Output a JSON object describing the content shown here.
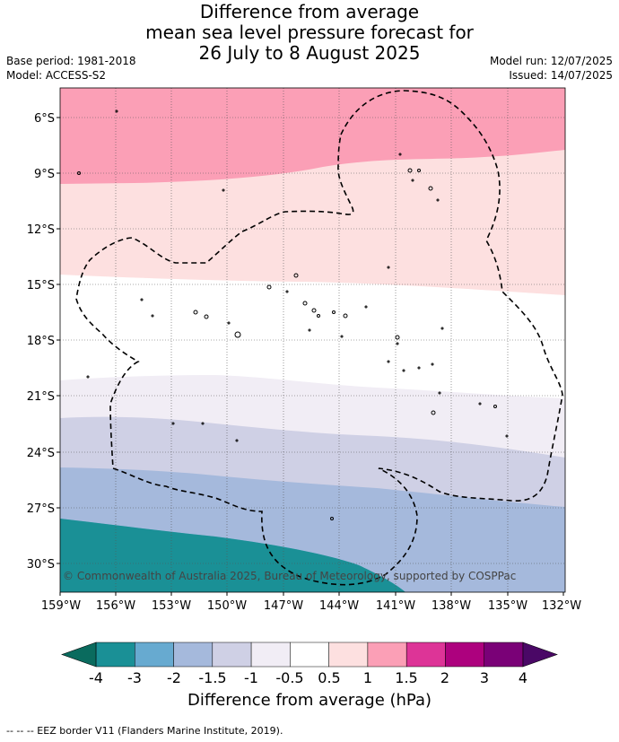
{
  "title": {
    "line1": "Difference from average",
    "line2": "mean sea level pressure forecast for",
    "line3": "26 July to 8 August 2025"
  },
  "meta_left": {
    "base_period": "Base period: 1981-2018",
    "model": "Model: ACCESS-S2"
  },
  "meta_right": {
    "model_run": "Model run: 12/07/2025",
    "issued": "Issued: 14/07/2025"
  },
  "map": {
    "lat_ticks": [
      "6°S",
      "9°S",
      "12°S",
      "15°S",
      "18°S",
      "21°S",
      "24°S",
      "27°S",
      "30°S"
    ],
    "lon_ticks": [
      "159°W",
      "156°W",
      "153°W",
      "150°W",
      "147°W",
      "144°W",
      "141°W",
      "138°W",
      "135°W",
      "132°W"
    ],
    "copyright": "© Commonwealth of Australia 2025, Bureau of Meteorology, supported by COSPPac"
  },
  "colorbar": {
    "label": "Difference from average (hPa)",
    "tick_labels": [
      "-4",
      "-3",
      "-2",
      "-1.5",
      "-1",
      "-0.5",
      "0.5",
      "1",
      "1.5",
      "2",
      "3",
      "4"
    ],
    "below_color": "#0a6b5e",
    "above_color": "#4a0866",
    "colors": [
      "#1a9096",
      "#67aad0",
      "#a5b9dc",
      "#cfd0e5",
      "#f1edf5",
      "#ffffff",
      "#fde0e0",
      "#fb9fb6",
      "#dd3497",
      "#ad017e",
      "#7a0177"
    ]
  },
  "footer": "--  --  -- EEZ border V11 (Flanders Marine Institute, 2019)."
}
